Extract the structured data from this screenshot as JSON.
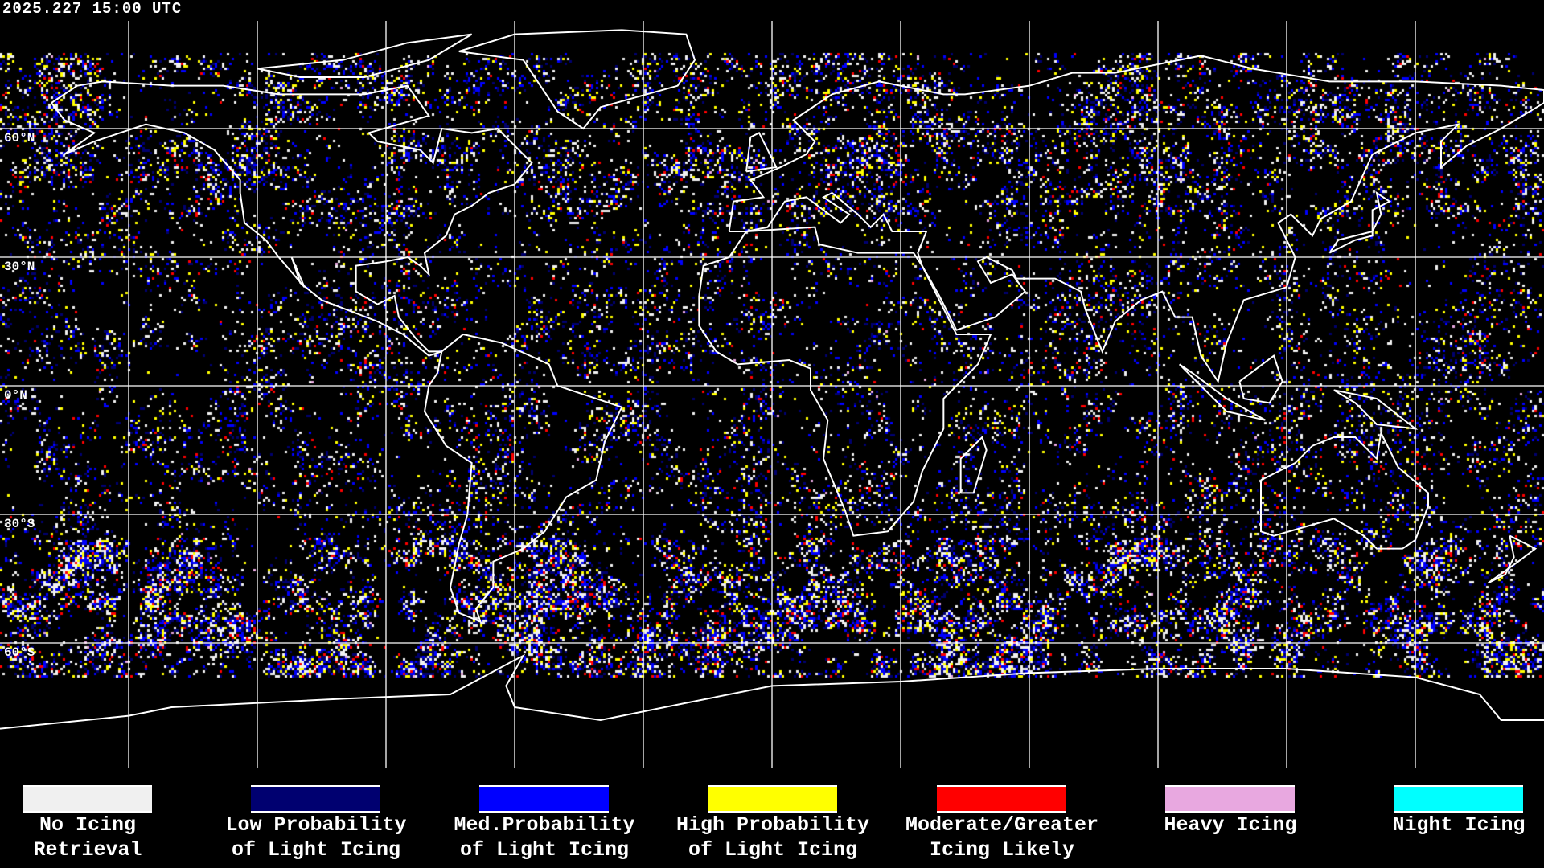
{
  "timestamp": "2025.227 15:00 UTC",
  "lat_labels": [
    "60°N",
    "30°N",
    "0°N",
    "30°S",
    "60°S"
  ],
  "legend": [
    {
      "line1": "No Icing",
      "line2": "Retrieval",
      "color": "#f0f0f0"
    },
    {
      "line1": "Low Probability",
      "line2": "of Light Icing",
      "color": "#000070"
    },
    {
      "line1": "Med.Probability",
      "line2": "of Light Icing",
      "color": "#0000ff"
    },
    {
      "line1": "High Probability",
      "line2": "of Light Icing",
      "color": "#ffff00"
    },
    {
      "line1": "Moderate/Greater",
      "line2": "Icing Likely",
      "color": "#ff0000"
    },
    {
      "line1": "Heavy Icing",
      "line2": "",
      "color": "#e8a8e0"
    },
    {
      "line1": "Night Icing",
      "line2": "",
      "color": "#00ffff"
    }
  ],
  "colors": {
    "background": "#000000",
    "grid": "#ffffff",
    "coastline": "#ffffff"
  }
}
